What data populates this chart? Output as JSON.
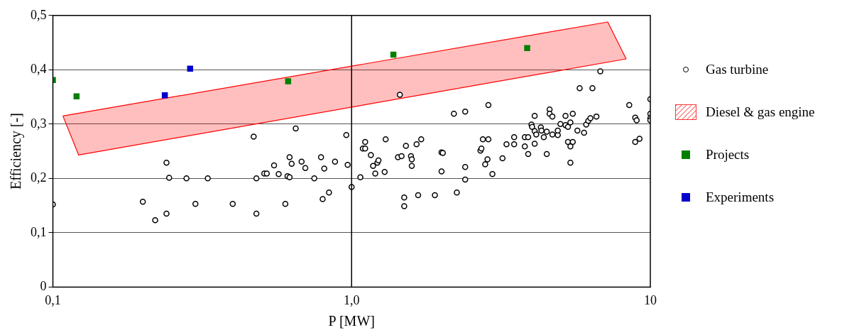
{
  "chart_data": {
    "type": "scatter",
    "xlabel": "P [MW]",
    "ylabel": "Efficiency [-]",
    "log": "x",
    "xlim": [
      0.1,
      10
    ],
    "xticks": [
      {
        "value": 0.1,
        "label": "0,1"
      },
      {
        "value": 1,
        "label": "1,0"
      },
      10
    ],
    "ylim": [
      0,
      0.5
    ],
    "yticks": [
      0,
      {
        "value": 0.1,
        "label": "0,1"
      },
      {
        "value": 0.2,
        "label": "0,2"
      },
      {
        "value": 0.3,
        "label": "0,3"
      },
      {
        "value": 0.4,
        "label": "0,4"
      },
      {
        "value": 0.5,
        "label": "0,5"
      }
    ],
    "grid": "y",
    "legend": "right",
    "ref_lines": [
      {
        "axis": "x",
        "value": 1,
        "color": "#000000"
      }
    ],
    "series": [
      {
        "name": "Gas turbine",
        "type": "scatter",
        "marker": "circle",
        "color": "#000000",
        "x": [
          0.1,
          0.2,
          0.22,
          0.24,
          0.24,
          0.245,
          0.28,
          0.3,
          0.33,
          0.4,
          0.47,
          0.48,
          0.48,
          0.51,
          0.52,
          0.55,
          0.57,
          0.6,
          0.61,
          0.62,
          0.63,
          0.62,
          0.65,
          0.68,
          0.7,
          0.75,
          0.79,
          0.8,
          0.81,
          0.84,
          0.88,
          0.96,
          0.97,
          1.0,
          1.07,
          1.11,
          1.09,
          1.11,
          1.16,
          1.18,
          1.2,
          1.22,
          1.23,
          1.29,
          1.3,
          1.43,
          1.47,
          1.52,
          1.5,
          1.5,
          1.45,
          1.58,
          1.59,
          1.59,
          1.65,
          1.71,
          1.67,
          1.9,
          2.0,
          2.02,
          2.0,
          2.2,
          2.4,
          2.25,
          2.4,
          2.4,
          2.7,
          2.72,
          2.75,
          2.87,
          2.87,
          2.8,
          2.85,
          2.96,
          3.2,
          3.3,
          3.5,
          3.5,
          3.8,
          3.9,
          3.8,
          3.9,
          4.0,
          4.02,
          4.1,
          4.1,
          4.1,
          4.15,
          4.3,
          4.32,
          4.4,
          4.5,
          4.5,
          4.6,
          4.6,
          4.7,
          4.7,
          4.9,
          4.9,
          5.0,
          5.2,
          5.2,
          5.3,
          5.4,
          5.3,
          5.5,
          5.4,
          5.4,
          5.5,
          5.8,
          6.4,
          5.7,
          6.0,
          6.1,
          6.2,
          6.3,
          6.6,
          6.8,
          8.5,
          8.9,
          9.0,
          8.9,
          9.2,
          10,
          10,
          10,
          10
        ],
        "values": [
          0.152,
          0.157,
          0.123,
          0.135,
          0.229,
          0.201,
          0.2,
          0.153,
          0.2,
          0.153,
          0.277,
          0.2,
          0.135,
          0.209,
          0.209,
          0.224,
          0.208,
          0.153,
          0.204,
          0.239,
          0.227,
          0.202,
          0.292,
          0.231,
          0.219,
          0.2,
          0.239,
          0.162,
          0.218,
          0.174,
          0.231,
          0.28,
          0.225,
          0.184,
          0.202,
          0.267,
          0.255,
          0.255,
          0.243,
          0.223,
          0.209,
          0.229,
          0.233,
          0.212,
          0.272,
          0.239,
          0.241,
          0.26,
          0.165,
          0.149,
          0.354,
          0.241,
          0.235,
          0.223,
          0.263,
          0.272,
          0.169,
          0.169,
          0.248,
          0.247,
          0.213,
          0.319,
          0.323,
          0.174,
          0.221,
          0.198,
          0.251,
          0.255,
          0.272,
          0.272,
          0.335,
          0.226,
          0.235,
          0.208,
          0.237,
          0.263,
          0.263,
          0.276,
          0.276,
          0.276,
          0.259,
          0.245,
          0.299,
          0.295,
          0.315,
          0.264,
          0.287,
          0.281,
          0.294,
          0.288,
          0.276,
          0.245,
          0.286,
          0.327,
          0.319,
          0.314,
          0.281,
          0.28,
          0.288,
          0.3,
          0.315,
          0.298,
          0.295,
          0.303,
          0.267,
          0.267,
          0.259,
          0.229,
          0.319,
          0.366,
          0.366,
          0.288,
          0.284,
          0.299,
          0.306,
          0.311,
          0.314,
          0.397,
          0.335,
          0.312,
          0.307,
          0.267,
          0.273,
          0.346,
          0.319,
          0.311,
          0.307
        ]
      },
      {
        "name": "Diesel & gas engine",
        "type": "area",
        "color": "#ff0000",
        "x": [
          0.108,
          0.122,
          8.3,
          7.2,
          0.108
        ],
        "values": [
          0.315,
          0.243,
          0.42,
          0.488,
          0.315
        ]
      },
      {
        "name": "Projects",
        "type": "scatter",
        "marker": "square",
        "color": "#008000",
        "x": [
          0.1,
          0.12,
          0.613,
          1.38,
          3.87
        ],
        "values": [
          0.381,
          0.351,
          0.379,
          0.428,
          0.44
        ]
      },
      {
        "name": "Experiments",
        "type": "scatter",
        "marker": "square",
        "color": "#0000cc",
        "x": [
          0.237,
          0.288
        ],
        "values": [
          0.353,
          0.402
        ]
      }
    ]
  }
}
